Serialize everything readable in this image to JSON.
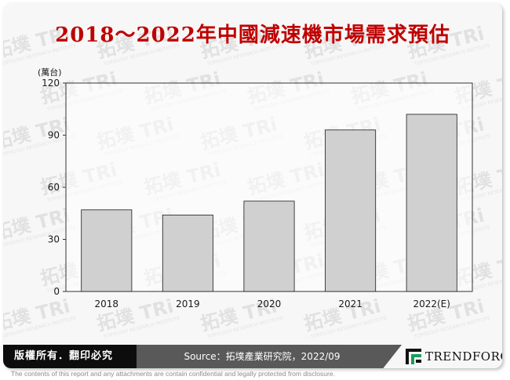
{
  "title": "2018～2022年中國減速機市場需求預估",
  "watermark": {
    "brand_cjk": "拓墣",
    "brand_latin": "TRi",
    "tagline": "TOPOLOGY RESEARCH INSTITUTE"
  },
  "chart_data": {
    "type": "bar",
    "unit_label": "(萬台)",
    "categories": [
      "2018",
      "2019",
      "2020",
      "2021",
      "2022(E)"
    ],
    "values": [
      47,
      44,
      52,
      93,
      102
    ],
    "ylim": [
      0,
      120
    ],
    "yticks": [
      "0",
      "30",
      "60",
      "90",
      "120"
    ],
    "grid": false,
    "legend": "none",
    "bar_color": "#d0d0d0",
    "bar_stroke": "#1a1a1a"
  },
  "footer": {
    "copyright": "版權所有．翻印必究",
    "source": "Source：拓墣產業研究院，2022/09",
    "logo_text": "TRENDFORCE",
    "logo_icon": "trendforce-logo-icon"
  },
  "disclaimer": "The contents of this report and any attachments are contain confidential and legally protected from disclosure."
}
